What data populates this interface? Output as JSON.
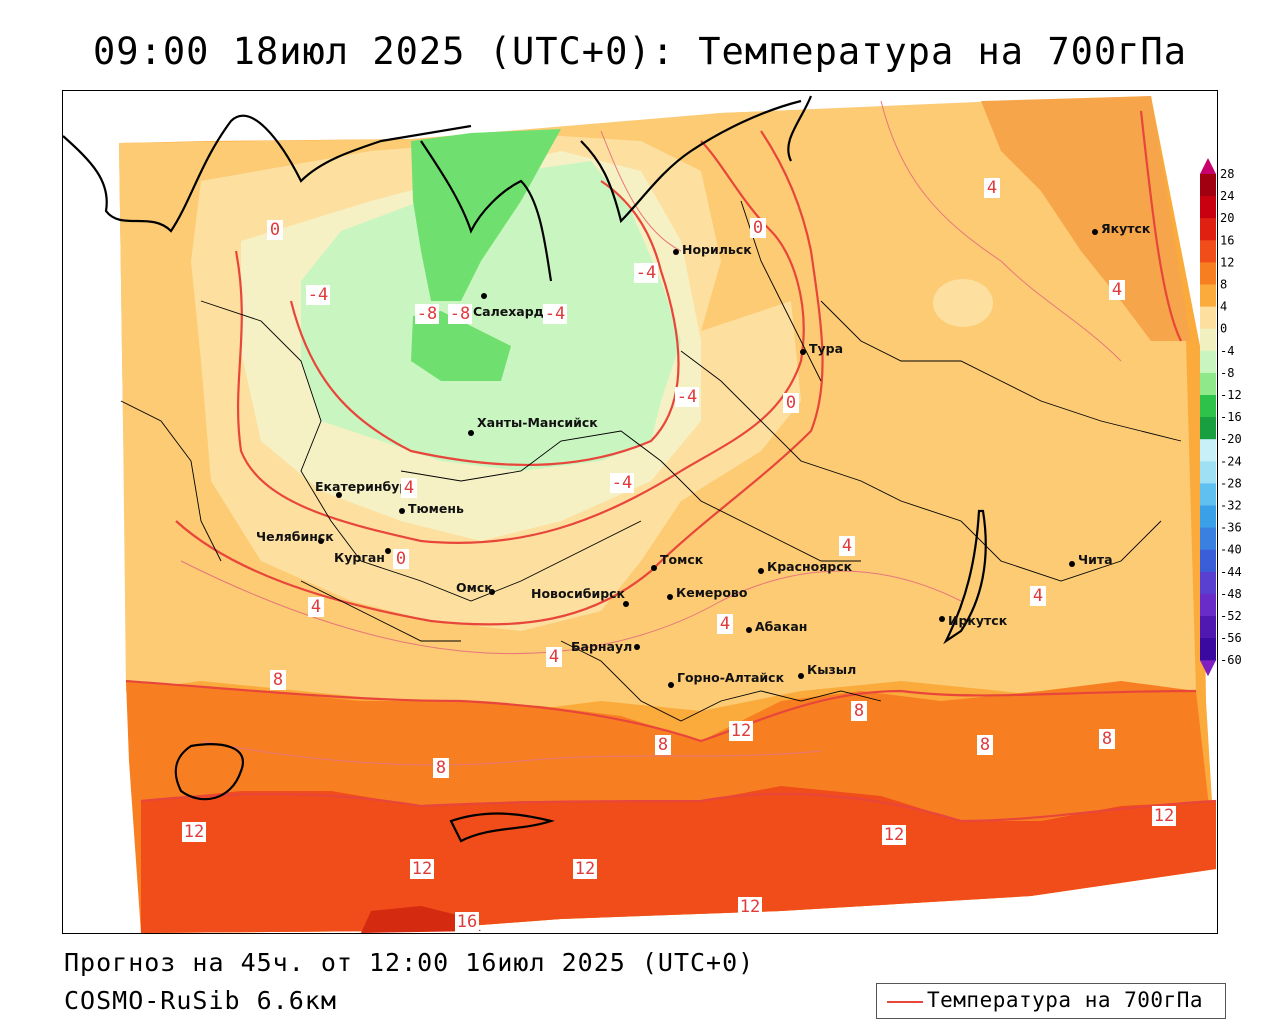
{
  "title": "09:00 18июл 2025 (UTC+0): Температура на 700гПа",
  "footer": {
    "forecast": "Прогноз на 45ч. от 12:00 16июл 2025 (UTC+0)",
    "model": "COSMO-RuSib 6.6км"
  },
  "legend": {
    "label": "Температура на 700гПа",
    "color": "#e8463a"
  },
  "colorbar": {
    "labels": [
      "28",
      "24",
      "20",
      "16",
      "12",
      "8",
      "4",
      "0",
      "-4",
      "-8",
      "-12",
      "-16",
      "-20",
      "-24",
      "-28",
      "-32",
      "-36",
      "-40",
      "-44",
      "-48",
      "-52",
      "-56",
      "-60"
    ],
    "colors": [
      "#c8006e",
      "#a00010",
      "#c80010",
      "#e02010",
      "#f04d1a",
      "#f77f22",
      "#fbab3c",
      "#fde0a0",
      "#f0f0c0",
      "#c9f5c0",
      "#8fe98a",
      "#2fc24a",
      "#18a040",
      "#c8f0f8",
      "#a0e0f5",
      "#60c0f0",
      "#3aa0e8",
      "#3a80e0",
      "#3a5ed8",
      "#5a40d0",
      "#6a2cc8",
      "#5018b0",
      "#3a0aa0",
      "#8020c0"
    ]
  },
  "cities": [
    {
      "name": "Якутск"
    },
    {
      "name": "Норильск"
    },
    {
      "name": "Салехард"
    },
    {
      "name": "Тура"
    },
    {
      "name": "Ханты-Мансийск"
    },
    {
      "name": "Екатеринбург"
    },
    {
      "name": "Тюмень"
    },
    {
      "name": "Челябинск"
    },
    {
      "name": "Курган"
    },
    {
      "name": "Омск"
    },
    {
      "name": "Новосибирск"
    },
    {
      "name": "Томск"
    },
    {
      "name": "Кемерово"
    },
    {
      "name": "Красноярск"
    },
    {
      "name": "Абакан"
    },
    {
      "name": "Барнаул"
    },
    {
      "name": "Горно-Алтайск"
    },
    {
      "name": "Кызыл"
    },
    {
      "name": "Иркутск"
    },
    {
      "name": "Чита"
    }
  ],
  "isolines": [
    {
      "value": "0"
    },
    {
      "value": "-4"
    },
    {
      "value": "-8"
    },
    {
      "value": "-8"
    },
    {
      "value": "-4"
    },
    {
      "value": "-4"
    },
    {
      "value": "-4"
    },
    {
      "value": "-4"
    },
    {
      "value": "4"
    },
    {
      "value": "0"
    },
    {
      "value": "0"
    },
    {
      "value": "4"
    },
    {
      "value": "4"
    },
    {
      "value": "0"
    },
    {
      "value": "4"
    },
    {
      "value": "4"
    },
    {
      "value": "4"
    },
    {
      "value": "4"
    },
    {
      "value": "4"
    },
    {
      "value": "8"
    },
    {
      "value": "8"
    },
    {
      "value": "8"
    },
    {
      "value": "8"
    },
    {
      "value": "8"
    },
    {
      "value": "8"
    },
    {
      "value": "12"
    },
    {
      "value": "12"
    },
    {
      "value": "12"
    },
    {
      "value": "12"
    },
    {
      "value": "12"
    },
    {
      "value": "12"
    },
    {
      "value": "12"
    },
    {
      "value": "16"
    }
  ]
}
